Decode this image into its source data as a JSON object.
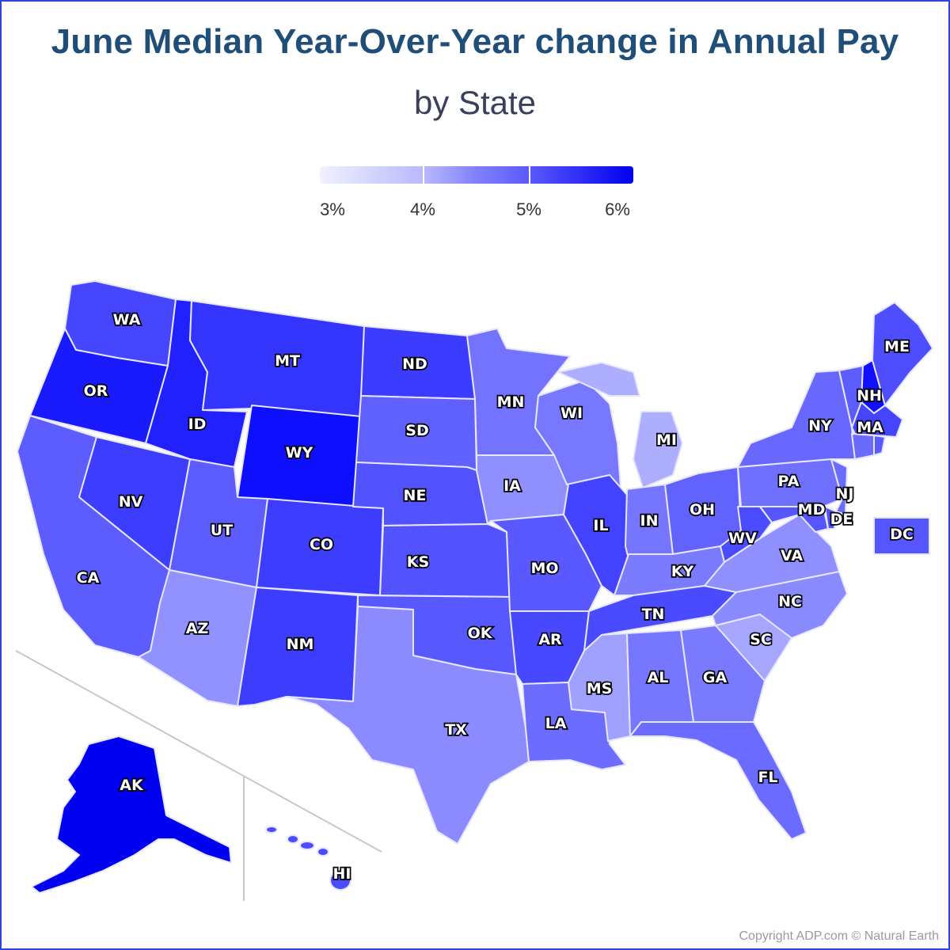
{
  "title": "June Median Year-Over-Year change in Annual Pay",
  "subtitle": "by State",
  "legend": {
    "ticks": [
      "3%",
      "4%",
      "5%",
      "6%"
    ],
    "colors": [
      "#f1f1ff",
      "#b9b9ff",
      "#8080ff",
      "#0000ee"
    ]
  },
  "copyright": "Copyright ADP.com © Natural Earth",
  "states": [
    {
      "abbr": "WA",
      "color": "#4646ff"
    },
    {
      "abbr": "OR",
      "color": "#1a1aff"
    },
    {
      "abbr": "CA",
      "color": "#5c5cff"
    },
    {
      "abbr": "NV",
      "color": "#3d3dff"
    },
    {
      "abbr": "ID",
      "color": "#2121ff"
    },
    {
      "abbr": "MT",
      "color": "#3434ff"
    },
    {
      "abbr": "WY",
      "color": "#0f0fff"
    },
    {
      "abbr": "UT",
      "color": "#5d5dff"
    },
    {
      "abbr": "AZ",
      "color": "#9191ff"
    },
    {
      "abbr": "CO",
      "color": "#3d3dff"
    },
    {
      "abbr": "NM",
      "color": "#3d3dff"
    },
    {
      "abbr": "ND",
      "color": "#3c3cff"
    },
    {
      "abbr": "SD",
      "color": "#6060ff"
    },
    {
      "abbr": "NE",
      "color": "#5252ff"
    },
    {
      "abbr": "KS",
      "color": "#5252ff"
    },
    {
      "abbr": "OK",
      "color": "#5858ff"
    },
    {
      "abbr": "TX",
      "color": "#8b8bff"
    },
    {
      "abbr": "MN",
      "color": "#7373ff"
    },
    {
      "abbr": "IA",
      "color": "#8f8fff"
    },
    {
      "abbr": "MO",
      "color": "#5959ff"
    },
    {
      "abbr": "AR",
      "color": "#4848ff"
    },
    {
      "abbr": "LA",
      "color": "#6c6cff"
    },
    {
      "abbr": "WI",
      "color": "#7777ff"
    },
    {
      "abbr": "IL",
      "color": "#4242ff"
    },
    {
      "abbr": "MI",
      "color": "#aeaeff"
    },
    {
      "abbr": "IN",
      "color": "#7575ff"
    },
    {
      "abbr": "OH",
      "color": "#6262ff"
    },
    {
      "abbr": "KY",
      "color": "#7b7bff"
    },
    {
      "abbr": "TN",
      "color": "#4a4aff"
    },
    {
      "abbr": "MS",
      "color": "#a0a0ff"
    },
    {
      "abbr": "AL",
      "color": "#7676ff"
    },
    {
      "abbr": "GA",
      "color": "#7a7aff"
    },
    {
      "abbr": "FL",
      "color": "#6b6bff"
    },
    {
      "abbr": "SC",
      "color": "#a6a6ff"
    },
    {
      "abbr": "NC",
      "color": "#8a8aff"
    },
    {
      "abbr": "VA",
      "color": "#8f8fff"
    },
    {
      "abbr": "WV",
      "color": "#4b4bff"
    },
    {
      "abbr": "PA",
      "color": "#7070ff"
    },
    {
      "abbr": "NY",
      "color": "#6868ff"
    },
    {
      "abbr": "NJ",
      "color": "#6b6bff"
    },
    {
      "abbr": "DE",
      "color": "#5151ff"
    },
    {
      "abbr": "MD",
      "color": "#5656ff"
    },
    {
      "abbr": "DC",
      "color": "#5656ff"
    },
    {
      "abbr": "ME",
      "color": "#4e4eff"
    },
    {
      "abbr": "NH",
      "color": "#1010ff"
    },
    {
      "abbr": "VT",
      "color": "#5d5dff"
    },
    {
      "abbr": "MA",
      "color": "#4545ff"
    },
    {
      "abbr": "CT",
      "color": "#6a6aff"
    },
    {
      "abbr": "RI",
      "color": "#5a5aff"
    },
    {
      "abbr": "AK",
      "color": "#0000f0"
    },
    {
      "abbr": "HI",
      "color": "#4c4cff"
    }
  ]
}
